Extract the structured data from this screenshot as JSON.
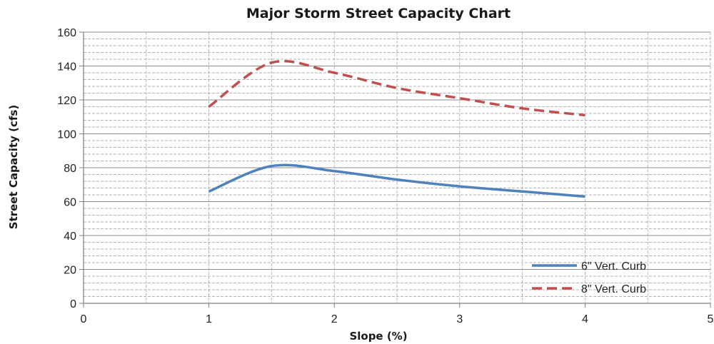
{
  "chart_data": {
    "type": "line",
    "title": "Major Storm Street Capacity  Chart",
    "xlabel": "Slope (%)",
    "ylabel": "Street Capacity (cfs)",
    "xlim": [
      0,
      5
    ],
    "ylim": [
      0,
      160
    ],
    "x_ticks": [
      "0",
      "1",
      "2",
      "3",
      "4",
      "5"
    ],
    "y_ticks": [
      "0",
      "20",
      "40",
      "60",
      "80",
      "100",
      "120",
      "140",
      "160"
    ],
    "grid": {
      "major_x": true,
      "major_y": true,
      "minor_y": true
    },
    "legend_position": "bottom-right",
    "series": [
      {
        "name": "6\" Vert. Curb",
        "style": "solid",
        "color": "#4f81bd",
        "x": [
          1,
          1.5,
          2,
          2.5,
          3,
          3.5,
          4
        ],
        "y": [
          66,
          81,
          78,
          73,
          69,
          66,
          63
        ]
      },
      {
        "name": "8\" Vert. Curb",
        "style": "dashed",
        "color": "#c0504d",
        "x": [
          1,
          1.5,
          2,
          2.5,
          3,
          3.5,
          4
        ],
        "y": [
          116,
          142,
          136,
          127,
          121,
          115,
          111
        ]
      }
    ]
  }
}
